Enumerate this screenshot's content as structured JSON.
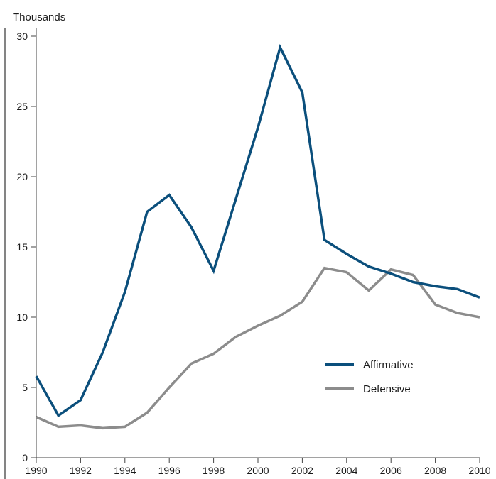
{
  "chart_data": {
    "type": "line",
    "title": "",
    "xlabel": "",
    "ylabel": "Thousands",
    "x": [
      1990,
      1991,
      1992,
      1993,
      1994,
      1995,
      1996,
      1997,
      1998,
      1999,
      2000,
      2001,
      2002,
      2003,
      2004,
      2005,
      2006,
      2007,
      2008,
      2009,
      2010
    ],
    "x_ticks": [
      "1990",
      "1992",
      "1994",
      "1996",
      "1998",
      "2000",
      "2002",
      "2004",
      "2006",
      "2008",
      "2010"
    ],
    "y_ticks": [
      "0",
      "5",
      "10",
      "15",
      "20",
      "25",
      "30"
    ],
    "xlim": [
      1990,
      2010
    ],
    "ylim": [
      0,
      30
    ],
    "grid": false,
    "legend_position": "bottom-right",
    "series": [
      {
        "name": "Affirmative",
        "color": "#0b4f7c",
        "values": [
          5.8,
          3.0,
          4.1,
          7.5,
          11.8,
          17.5,
          18.7,
          16.4,
          13.3,
          18.4,
          23.5,
          29.2,
          26.0,
          15.5,
          14.5,
          13.6,
          13.1,
          12.5,
          12.2,
          12.0,
          11.4
        ]
      },
      {
        "name": "Defensive",
        "color": "#8c8c8c",
        "values": [
          2.9,
          2.2,
          2.3,
          2.1,
          2.2,
          3.2,
          5.0,
          6.7,
          7.4,
          8.6,
          9.4,
          10.1,
          11.1,
          13.5,
          13.2,
          11.9,
          13.4,
          13.0,
          10.9,
          10.3,
          10.0
        ]
      }
    ]
  }
}
